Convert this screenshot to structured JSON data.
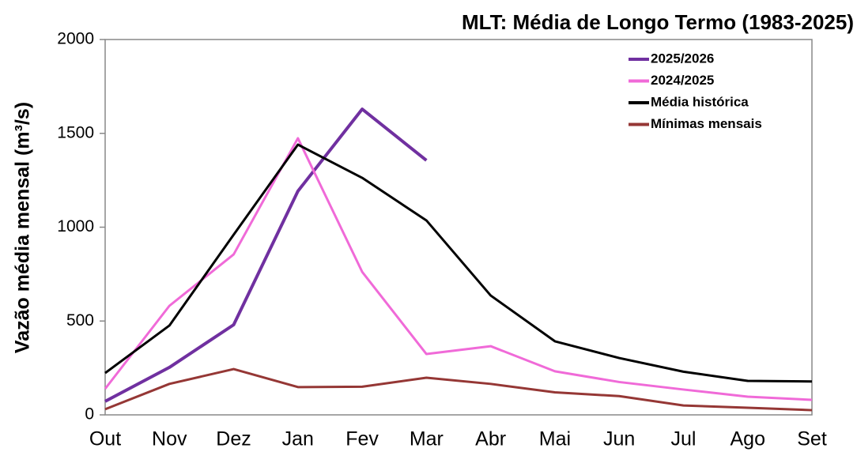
{
  "chart_data": {
    "type": "line",
    "title": "MLT: Média de Longo Termo (1983-2025)",
    "y_label": "Vazão média mensal (m³/s)",
    "categories": [
      "Out",
      "Nov",
      "Dez",
      "Jan",
      "Fev",
      "Mar",
      "Abr",
      "Mai",
      "Jun",
      "Jul",
      "Ago",
      "Set"
    ],
    "series": [
      {
        "name": "2025/2026",
        "color": "#7030a0",
        "values": [
          72,
          253,
          480,
          1192,
          1629,
          1356,
          null,
          null,
          null,
          null,
          null,
          null
        ]
      },
      {
        "name": "2024/2025",
        "color": "#f06ad8",
        "values": [
          139,
          581,
          855,
          1474,
          762,
          324,
          366,
          232,
          175,
          135,
          97,
          80
        ]
      },
      {
        "name": "Média histórica",
        "color": "#000000",
        "values": [
          223,
          476,
          960,
          1440,
          1263,
          1036,
          636,
          392,
          303,
          230,
          181,
          178
        ]
      },
      {
        "name": "Mínimas mensais",
        "color": "#953735",
        "values": [
          30,
          165,
          244,
          148,
          150,
          198,
          165,
          120,
          100,
          50,
          38,
          25
        ]
      }
    ],
    "ylim": [
      0,
      2000
    ],
    "yticks": [
      0,
      500,
      1000,
      1500,
      2000
    ],
    "legend": "upper right"
  }
}
